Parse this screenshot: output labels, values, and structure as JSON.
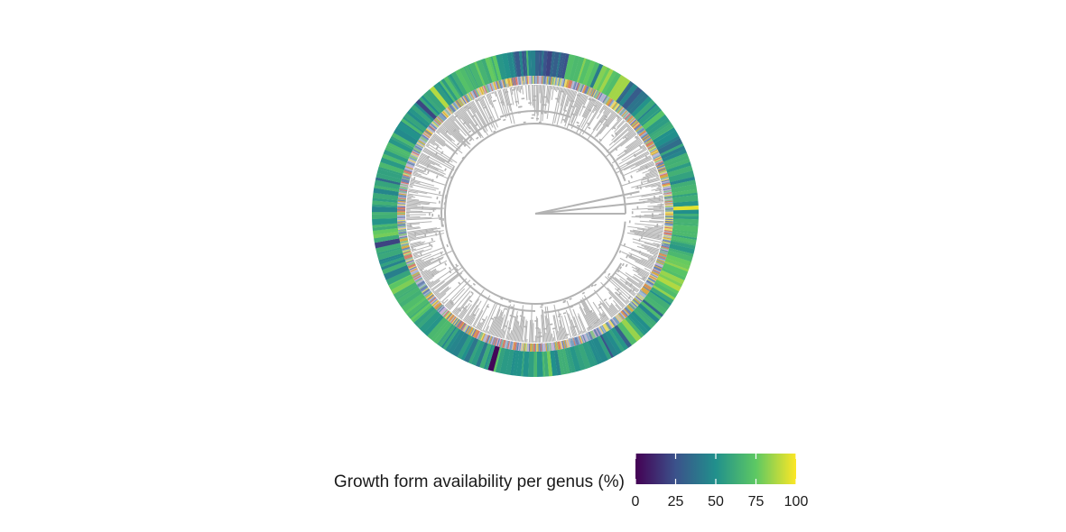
{
  "chart_data": {
    "type": "circular-phylogeny-heatmap",
    "title": "",
    "legend": {
      "title": "Growth form availability per genus (%)",
      "placement": "bottom",
      "scale": "viridis",
      "range": [
        0,
        100
      ],
      "ticks": [
        0,
        25,
        50,
        75,
        100
      ],
      "colors": [
        "#440154",
        "#3b528b",
        "#21908c",
        "#5dc863",
        "#fde725"
      ]
    },
    "rings": [
      {
        "name": "inner-ring",
        "kind": "per-tip growth form",
        "colors": [
          "#6a7fb0",
          "#d8a640",
          "#7a9ec0",
          "#c7b1d4",
          "#d47a6a",
          "#e7d96b",
          "#8cc08a",
          "#a4b8cf"
        ]
      },
      {
        "name": "outer-ring",
        "kind": "per-genus availability (%)",
        "segments": [
          {
            "start": 0,
            "end": 12,
            "value": 30
          },
          {
            "start": 12,
            "end": 20,
            "value": 72
          },
          {
            "start": 20,
            "end": 36,
            "value": 78
          },
          {
            "start": 36,
            "end": 44,
            "value": 40
          },
          {
            "start": 44,
            "end": 50,
            "value": 52
          },
          {
            "start": 50,
            "end": 58,
            "value": 65
          },
          {
            "start": 58,
            "end": 68,
            "value": 45
          },
          {
            "start": 68,
            "end": 78,
            "value": 55
          },
          {
            "start": 78,
            "end": 92,
            "value": 60
          },
          {
            "start": 92,
            "end": 110,
            "value": 68
          },
          {
            "start": 110,
            "end": 122,
            "value": 78
          },
          {
            "start": 122,
            "end": 132,
            "value": 58
          },
          {
            "start": 132,
            "end": 148,
            "value": 62
          },
          {
            "start": 148,
            "end": 162,
            "value": 56
          },
          {
            "start": 162,
            "end": 185,
            "value": 58
          },
          {
            "start": 185,
            "end": 200,
            "value": 60
          },
          {
            "start": 200,
            "end": 216,
            "value": 50
          },
          {
            "start": 216,
            "end": 228,
            "value": 62
          },
          {
            "start": 228,
            "end": 244,
            "value": 72
          },
          {
            "start": 244,
            "end": 256,
            "value": 54
          },
          {
            "start": 256,
            "end": 266,
            "value": 70
          },
          {
            "start": 266,
            "end": 282,
            "value": 55
          },
          {
            "start": 282,
            "end": 296,
            "value": 62
          },
          {
            "start": 296,
            "end": 312,
            "value": 58
          },
          {
            "start": 312,
            "end": 324,
            "value": 50
          },
          {
            "start": 324,
            "end": 336,
            "value": 62
          },
          {
            "start": 336,
            "end": 346,
            "value": 68
          },
          {
            "start": 346,
            "end": 352,
            "value": 45
          },
          {
            "start": 352,
            "end": 360,
            "value": 35
          }
        ]
      }
    ],
    "tree": {
      "color": "#b3b3b3",
      "layout": "circular"
    }
  }
}
